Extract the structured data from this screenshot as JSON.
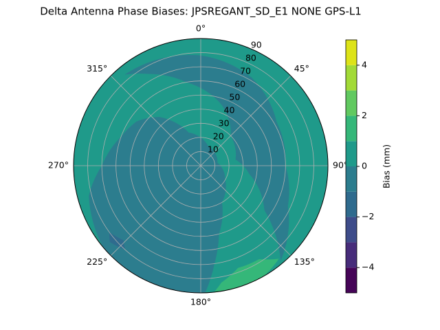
{
  "chart_data": {
    "type": "polar_contour",
    "title": "Delta Antenna Phase Biases: JPSREGANT_SD_E1 NONE GPS-L1",
    "rlim": [
      0,
      90
    ],
    "rticks": [
      10,
      20,
      30,
      40,
      50,
      60,
      70,
      80,
      90
    ],
    "thetaticks": [
      {
        "value": 0,
        "label": "0°"
      },
      {
        "value": 45,
        "label": "45°"
      },
      {
        "value": 90,
        "label": "90°"
      },
      {
        "value": 135,
        "label": "135°"
      },
      {
        "value": 180,
        "label": "180°"
      },
      {
        "value": 225,
        "label": "225°"
      },
      {
        "value": 270,
        "label": "270°"
      },
      {
        "value": 315,
        "label": "315°"
      }
    ],
    "grid": true,
    "background_level": 0,
    "regions": [
      {
        "level": -1,
        "az": [
          320,
          345,
          0,
          30,
          60,
          90,
          115,
          130,
          140,
          125,
          100,
          80,
          45,
          20,
          350,
          330
        ],
        "r": [
          84,
          80,
          78,
          72,
          62,
          60,
          68,
          80,
          88,
          55,
          35,
          25,
          30,
          45,
          60,
          75
        ]
      },
      {
        "level": -1,
        "az": [
          178,
          200,
          230,
          255,
          270,
          290,
          305,
          320,
          340,
          20,
          80,
          120,
          150,
          165,
          172
        ],
        "r": [
          90,
          90,
          90,
          82,
          70,
          60,
          55,
          45,
          25,
          15,
          12,
          20,
          30,
          50,
          70
        ]
      },
      {
        "level": 1,
        "az": [
          140,
          148,
          160,
          170,
          174,
          150
        ],
        "r": [
          86,
          78,
          77,
          84,
          90,
          90
        ]
      },
      {
        "level": -2,
        "az": [
          222,
          226,
          234,
          230
        ],
        "r": [
          80,
          76,
          80,
          84
        ]
      }
    ],
    "colorbar": {
      "label": "Bias (mm)",
      "levels": [
        -5,
        -4,
        -3,
        -2,
        -1,
        0,
        1,
        2,
        3,
        4,
        5
      ],
      "colors": [
        "#450457",
        "#472c7a",
        "#3e4c8a",
        "#2f6b8e",
        "#2c7d8e",
        "#1f9a8a",
        "#35b779",
        "#61c960",
        "#a2da37",
        "#dde318"
      ],
      "ticks": [
        {
          "value": -4,
          "label": "−4"
        },
        {
          "value": -2,
          "label": "−2"
        },
        0,
        2,
        4
      ]
    }
  }
}
